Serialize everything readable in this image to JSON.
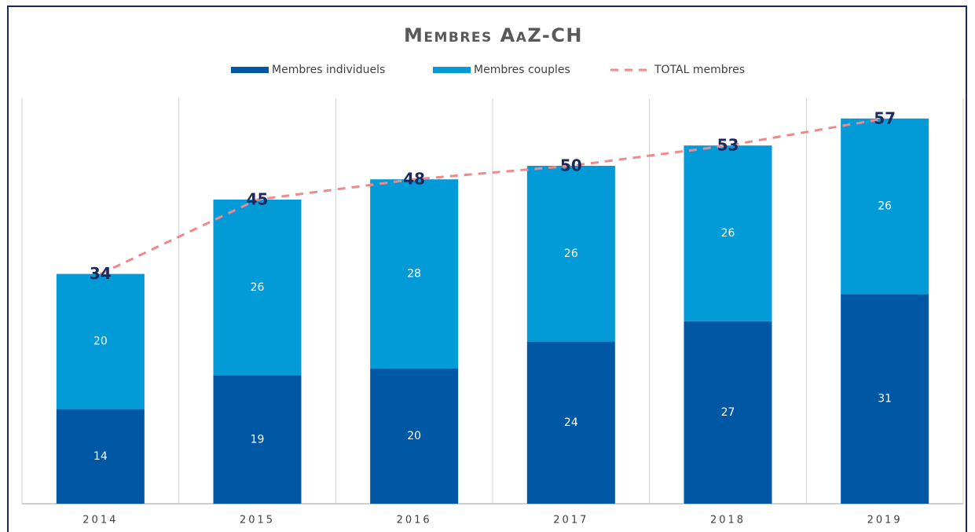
{
  "chart_data": {
    "type": "bar",
    "stacked": true,
    "title": "Membres AaZ-CH",
    "categories": [
      "2014",
      "2015",
      "2016",
      "2017",
      "2018",
      "2019"
    ],
    "series": [
      {
        "name": "Membres individuels",
        "color": "#0057a4",
        "values": [
          14,
          19,
          20,
          24,
          27,
          31
        ]
      },
      {
        "name": "Membres couples",
        "color": "#039ad8",
        "values": [
          20,
          26,
          28,
          26,
          26,
          26
        ]
      },
      {
        "name": "TOTAL membres",
        "type": "line",
        "dashed": true,
        "color": "#f08a8a",
        "values": [
          34,
          45,
          48,
          50,
          53,
          57
        ]
      }
    ],
    "ylim": [
      0,
      60
    ]
  }
}
